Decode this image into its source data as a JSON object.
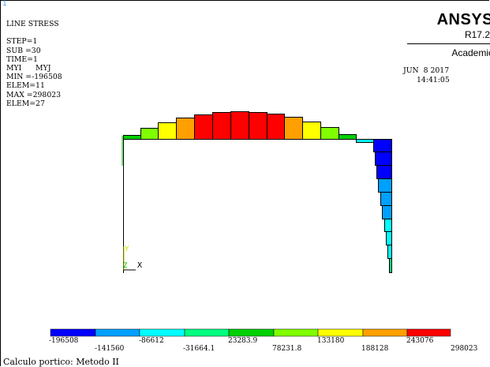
{
  "window": {
    "number": "1"
  },
  "info_block": {
    "lines": [
      "LINE STRESS",
      "",
      "STEP=1",
      "SUB =30",
      "TIME=1",
      "MYI      MYJ",
      "MIN =-196508",
      "ELEM=11",
      "MAX =298023",
      "ELEM=27"
    ]
  },
  "branding": {
    "logo": "ANSYS",
    "release": "R17.2",
    "edition": "Academic"
  },
  "timestamp": {
    "date": "JUN  8 2017",
    "time": "14:41:05"
  },
  "triad": {
    "y_label": "Y",
    "z_label": "Z",
    "x_label": "X"
  },
  "colors": {
    "legend": [
      "#0000ff",
      "#00a0ff",
      "#00ffff",
      "#00ff80",
      "#00d000",
      "#80ff00",
      "#ffff00",
      "#ffa000",
      "#ff0000"
    ],
    "frame_green": "#00c000"
  },
  "legend": {
    "labels_top": [
      "-196508",
      "-86612",
      "23283.9",
      "133180",
      "243076"
    ],
    "labels_bottom": [
      "-141560",
      "-31664.1",
      "78231.8",
      "188128",
      "298023"
    ]
  },
  "caption": "Calculo portico: Metodo II"
}
